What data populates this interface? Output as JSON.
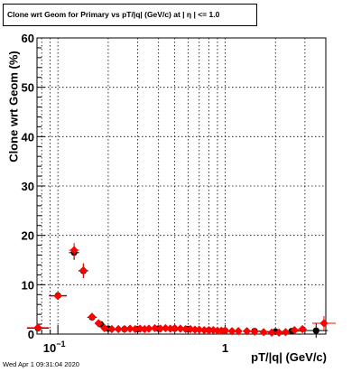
{
  "title": "Clone wrt Geom for Primary vs pT/|q| (GeV/c) at |  η | <= 1.0",
  "timestamp": "Wed Apr  1 09:31:04 2020",
  "chart_data": {
    "type": "scatter",
    "title": "Clone wrt Geom for Primary vs pT/|q| (GeV/c) at |  η | <= 1.0",
    "xlabel": "pT/|q| (GeV/c)",
    "ylabel": "Clone wrt Geom (%)",
    "x_scale": "log",
    "xlim": [
      0.075,
      4.0
    ],
    "ylim": [
      0,
      60
    ],
    "y_ticks": [
      0,
      10,
      20,
      30,
      40,
      50,
      60
    ],
    "x_tick_labels": [
      {
        "value": 0.1,
        "base": "10",
        "exp": "−1"
      },
      {
        "value": 1,
        "base": "1",
        "exp": ""
      }
    ],
    "grid": true,
    "colors": {
      "series_a": "#000000",
      "series_b": "#ff0000"
    },
    "series": [
      {
        "color": "#000000",
        "marker": "circle",
        "points": [
          {
            "x": 0.076,
            "y": 1.2
          },
          {
            "x": 0.1,
            "y": 7.8
          },
          {
            "x": 0.125,
            "y": 16.5
          },
          {
            "x": 0.142,
            "y": 12.8
          },
          {
            "x": 0.16,
            "y": 3.4
          },
          {
            "x": 0.18,
            "y": 2.0
          },
          {
            "x": 0.2,
            "y": 1.1
          },
          {
            "x": 0.25,
            "y": 1.0
          },
          {
            "x": 0.3,
            "y": 1.0
          },
          {
            "x": 0.4,
            "y": 1.1
          },
          {
            "x": 0.5,
            "y": 1.1
          },
          {
            "x": 0.6,
            "y": 1.0
          },
          {
            "x": 0.8,
            "y": 0.8
          },
          {
            "x": 1.0,
            "y": 0.7
          },
          {
            "x": 1.5,
            "y": 0.6
          },
          {
            "x": 2.0,
            "y": 0.5
          },
          {
            "x": 2.5,
            "y": 0.6
          },
          {
            "x": 3.5,
            "y": 0.7
          }
        ]
      },
      {
        "color": "#ff0000",
        "marker": "diamond",
        "points": [
          {
            "x": 0.076,
            "y": 1.3
          },
          {
            "x": 0.1,
            "y": 7.7
          },
          {
            "x": 0.125,
            "y": 17.0
          },
          {
            "x": 0.142,
            "y": 12.9
          },
          {
            "x": 0.16,
            "y": 3.5
          },
          {
            "x": 0.175,
            "y": 2.2
          },
          {
            "x": 0.19,
            "y": 1.2
          },
          {
            "x": 0.21,
            "y": 1.0
          },
          {
            "x": 0.23,
            "y": 1.0
          },
          {
            "x": 0.25,
            "y": 1.0
          },
          {
            "x": 0.27,
            "y": 1.1
          },
          {
            "x": 0.29,
            "y": 1.0
          },
          {
            "x": 0.31,
            "y": 1.1
          },
          {
            "x": 0.33,
            "y": 1.0
          },
          {
            "x": 0.35,
            "y": 1.1
          },
          {
            "x": 0.38,
            "y": 1.2
          },
          {
            "x": 0.41,
            "y": 1.1
          },
          {
            "x": 0.44,
            "y": 1.2
          },
          {
            "x": 0.47,
            "y": 1.1
          },
          {
            "x": 0.5,
            "y": 1.2
          },
          {
            "x": 0.54,
            "y": 1.1
          },
          {
            "x": 0.58,
            "y": 1.0
          },
          {
            "x": 0.62,
            "y": 1.0
          },
          {
            "x": 0.66,
            "y": 0.9
          },
          {
            "x": 0.7,
            "y": 0.9
          },
          {
            "x": 0.75,
            "y": 0.8
          },
          {
            "x": 0.8,
            "y": 0.8
          },
          {
            "x": 0.85,
            "y": 0.8
          },
          {
            "x": 0.9,
            "y": 0.7
          },
          {
            "x": 0.95,
            "y": 0.7
          },
          {
            "x": 1.0,
            "y": 0.7
          },
          {
            "x": 1.1,
            "y": 0.6
          },
          {
            "x": 1.2,
            "y": 0.6
          },
          {
            "x": 1.35,
            "y": 0.6
          },
          {
            "x": 1.5,
            "y": 0.5
          },
          {
            "x": 1.7,
            "y": 0.4
          },
          {
            "x": 1.9,
            "y": 0.3
          },
          {
            "x": 2.1,
            "y": 0.3
          },
          {
            "x": 2.3,
            "y": 0.4
          },
          {
            "x": 2.6,
            "y": 0.8
          },
          {
            "x": 2.9,
            "y": 1.0
          },
          {
            "x": 3.9,
            "y": 2.2
          }
        ]
      }
    ]
  }
}
